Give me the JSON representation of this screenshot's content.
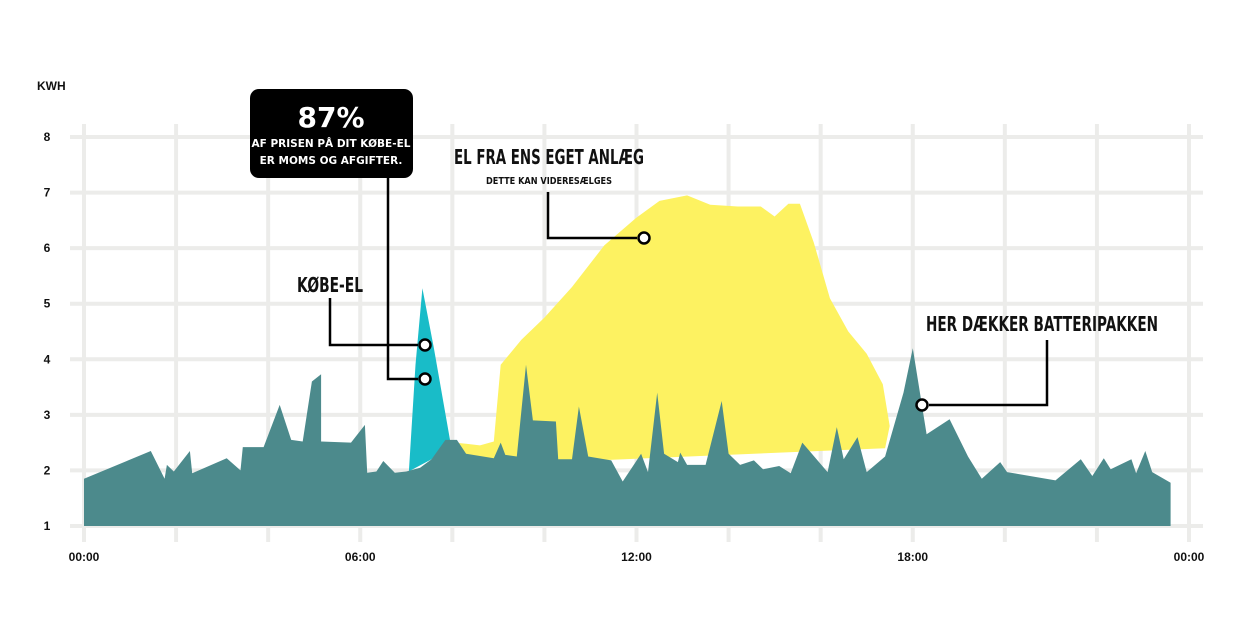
{
  "chart_data": {
    "type": "area",
    "ylabel": "KWH",
    "ylim": [
      1,
      8
    ],
    "yticks": [
      "1",
      "2",
      "3",
      "4",
      "5",
      "6",
      "7",
      "8"
    ],
    "xlim": [
      0,
      24
    ],
    "xticks": [
      {
        "value": 0,
        "label": "00:00"
      },
      {
        "value": 6,
        "label": "06:00"
      },
      {
        "value": 12,
        "label": "12:00"
      },
      {
        "value": 18,
        "label": "18:00"
      },
      {
        "value": 24,
        "label": "00:00"
      }
    ],
    "grid": true,
    "colors": {
      "teal": "#4c8a8c",
      "cyan": "#19bcc8",
      "yellow": "#fdf261",
      "grid": "#ececea",
      "callout_bg": "#000000"
    },
    "series": [
      {
        "role": "teal-base",
        "points": [
          [
            0.0,
            1.85
          ],
          [
            1.45,
            2.35
          ],
          [
            1.75,
            1.85
          ],
          [
            1.8,
            2.1
          ],
          [
            1.95,
            1.98
          ],
          [
            2.3,
            2.35
          ],
          [
            2.35,
            1.95
          ],
          [
            3.1,
            2.22
          ],
          [
            3.4,
            2.0
          ],
          [
            3.45,
            2.42
          ],
          [
            3.9,
            2.42
          ],
          [
            4.25,
            3.18
          ],
          [
            4.5,
            2.55
          ],
          [
            4.75,
            2.52
          ],
          [
            4.95,
            3.6
          ],
          [
            5.15,
            3.73
          ],
          [
            5.15,
            2.52
          ],
          [
            5.8,
            2.5
          ],
          [
            6.1,
            2.82
          ],
          [
            6.15,
            1.96
          ],
          [
            6.35,
            1.98
          ],
          [
            6.5,
            2.17
          ],
          [
            6.75,
            1.96
          ],
          [
            7.0,
            1.98
          ],
          [
            7.3,
            2.05
          ],
          [
            7.55,
            2.2
          ],
          [
            7.85,
            2.55
          ],
          [
            8.1,
            2.55
          ],
          [
            8.3,
            2.3
          ],
          [
            8.9,
            2.22
          ],
          [
            9.05,
            2.5
          ],
          [
            9.15,
            2.28
          ],
          [
            9.4,
            2.25
          ],
          [
            9.6,
            3.9
          ],
          [
            9.75,
            2.9
          ],
          [
            10.25,
            2.88
          ],
          [
            10.3,
            2.2
          ],
          [
            10.6,
            2.2
          ],
          [
            10.75,
            3.15
          ],
          [
            10.95,
            2.25
          ],
          [
            11.45,
            2.18
          ],
          [
            11.7,
            1.8
          ],
          [
            12.1,
            2.3
          ],
          [
            12.25,
            1.97
          ],
          [
            12.45,
            3.4
          ],
          [
            12.6,
            2.3
          ],
          [
            12.9,
            2.15
          ],
          [
            12.95,
            2.32
          ],
          [
            13.1,
            2.1
          ],
          [
            13.5,
            2.1
          ],
          [
            13.85,
            3.25
          ],
          [
            14.0,
            2.3
          ],
          [
            14.25,
            2.1
          ],
          [
            14.55,
            2.18
          ],
          [
            14.75,
            2.02
          ],
          [
            15.1,
            2.08
          ],
          [
            15.35,
            1.95
          ],
          [
            15.6,
            2.5
          ],
          [
            16.15,
            1.97
          ],
          [
            16.35,
            2.78
          ],
          [
            16.5,
            2.2
          ],
          [
            16.8,
            2.6
          ],
          [
            17.0,
            1.97
          ],
          [
            17.4,
            2.25
          ],
          [
            17.8,
            3.4
          ],
          [
            18.0,
            4.2
          ],
          [
            18.3,
            2.65
          ],
          [
            18.8,
            2.92
          ],
          [
            19.2,
            2.25
          ],
          [
            19.5,
            1.85
          ],
          [
            19.9,
            2.15
          ],
          [
            20.05,
            1.97
          ],
          [
            21.1,
            1.82
          ],
          [
            21.65,
            2.2
          ],
          [
            21.9,
            1.9
          ],
          [
            22.15,
            2.22
          ],
          [
            22.3,
            2.02
          ],
          [
            22.75,
            2.2
          ],
          [
            22.85,
            1.95
          ],
          [
            23.05,
            2.35
          ],
          [
            23.2,
            1.97
          ],
          [
            23.6,
            1.78
          ]
        ]
      },
      {
        "role": "cyan-peak",
        "points": [
          [
            7.05,
            1.9
          ],
          [
            7.2,
            3.9
          ],
          [
            7.35,
            5.28
          ],
          [
            7.6,
            4.2
          ],
          [
            7.95,
            2.55
          ],
          [
            7.55,
            2.2
          ],
          [
            7.05,
            1.98
          ]
        ]
      },
      {
        "role": "yellow-own-production",
        "points": [
          [
            7.4,
            2.05
          ],
          [
            8.05,
            2.5
          ],
          [
            8.3,
            2.48
          ],
          [
            8.6,
            2.45
          ],
          [
            8.9,
            2.52
          ],
          [
            9.05,
            3.9
          ],
          [
            9.5,
            4.35
          ],
          [
            10.0,
            4.75
          ],
          [
            10.6,
            5.3
          ],
          [
            11.3,
            6.05
          ],
          [
            12.0,
            6.55
          ],
          [
            12.5,
            6.85
          ],
          [
            13.1,
            6.95
          ],
          [
            13.6,
            6.78
          ],
          [
            14.2,
            6.75
          ],
          [
            14.7,
            6.75
          ],
          [
            15.0,
            6.57
          ],
          [
            15.3,
            6.8
          ],
          [
            15.55,
            6.8
          ],
          [
            15.85,
            6.1
          ],
          [
            16.2,
            5.1
          ],
          [
            16.6,
            4.5
          ],
          [
            17.0,
            4.1
          ],
          [
            17.35,
            3.55
          ],
          [
            17.5,
            2.8
          ],
          [
            17.4,
            2.4
          ]
        ]
      }
    ],
    "annotations": {
      "callout_percent": "87%",
      "callout_line1": "AF PRISEN PÅ DIT KØBE-EL",
      "callout_line2": "ER MOMS OG AFGIFTER.",
      "kobe_el": "KØBE-EL",
      "eget_anlaeg": "EL FRA ENS EGET ANLÆG",
      "eget_anlaeg_sub": "DETTE KAN VIDERESÆLGES",
      "batteri": "HER DÆKKER BATTERIPAKKEN"
    }
  }
}
